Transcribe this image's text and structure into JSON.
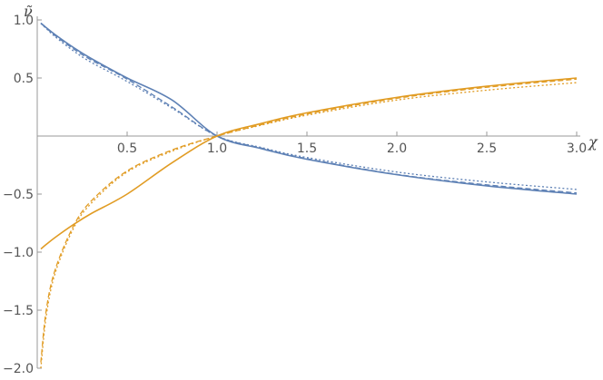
{
  "chart_data": {
    "type": "line",
    "xlabel": "χ",
    "ylabel": "ν̃",
    "xlim": [
      0,
      3
    ],
    "ylim": [
      -2,
      1
    ],
    "x_ticks": [
      "0.5",
      "1.0",
      "1.5",
      "2.0",
      "2.5",
      "3.0"
    ],
    "y_ticks": [
      "1.0",
      "0.5",
      "−0.5",
      "−1.0",
      "−1.5",
      "−2.0"
    ],
    "grid": false,
    "legend": "none",
    "colors": {
      "blue": "#5e81b5",
      "orange": "#e19c24",
      "axis": "#999999"
    },
    "x": [
      0.02,
      0.05,
      0.1,
      0.2,
      0.3,
      0.5,
      0.75,
      1.0,
      1.25,
      1.5,
      2.0,
      2.5,
      3.0
    ],
    "series": [
      {
        "color": "#5e81b5",
        "style": "solid",
        "values": [
          0.973,
          0.934,
          0.873,
          0.764,
          0.668,
          0.5,
          0.31,
          0.0,
          -0.11,
          -0.2,
          -0.333,
          -0.429,
          -0.5
        ]
      },
      {
        "color": "#5e81b5",
        "style": "dashed",
        "values": [
          0.972,
          0.93,
          0.865,
          0.752,
          0.655,
          0.49,
          0.25,
          0.0,
          -0.105,
          -0.195,
          -0.33,
          -0.42,
          -0.49
        ]
      },
      {
        "color": "#5e81b5",
        "style": "dotted",
        "values": [
          0.97,
          0.926,
          0.855,
          0.735,
          0.635,
          0.47,
          0.24,
          0.0,
          -0.1,
          -0.185,
          -0.31,
          -0.395,
          -0.46
        ]
      },
      {
        "color": "#e19c24",
        "style": "solid",
        "values": [
          -0.973,
          -0.934,
          -0.873,
          -0.764,
          -0.668,
          -0.5,
          -0.23,
          0.0,
          0.11,
          0.2,
          0.333,
          0.429,
          0.5
        ]
      },
      {
        "color": "#e19c24",
        "style": "dashed",
        "values": [
          -1.95,
          -1.5,
          -1.15,
          -0.78,
          -0.56,
          -0.3,
          -0.12,
          0.0,
          0.1,
          0.19,
          0.325,
          0.42,
          0.49
        ]
      },
      {
        "color": "#e19c24",
        "style": "dotted",
        "values": [
          -2.0,
          -1.55,
          -1.18,
          -0.8,
          -0.58,
          -0.31,
          -0.13,
          0.0,
          0.095,
          0.18,
          0.31,
          0.395,
          0.46
        ]
      }
    ]
  }
}
